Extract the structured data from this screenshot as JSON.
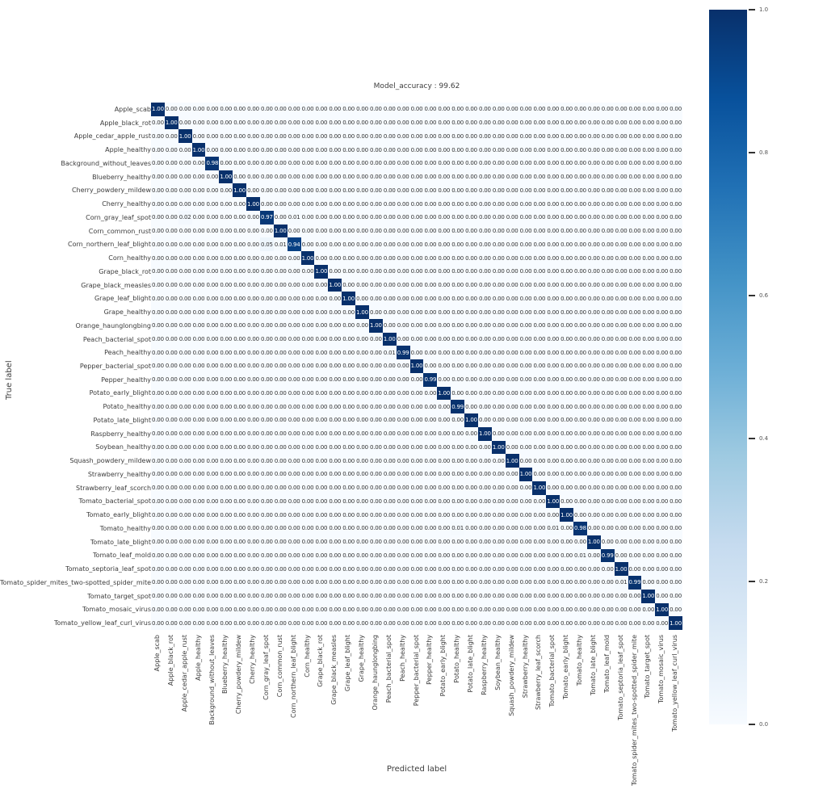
{
  "figure": {
    "title": "Model_accuracy : 99.62",
    "xlabel": "Predicted label",
    "ylabel": "True label"
  },
  "colorbar": {
    "ticks": [
      "1.0",
      "0.8",
      "0.6",
      "0.4",
      "0.2",
      "0.0"
    ],
    "tick_values": [
      1.0,
      0.8,
      0.6,
      0.4,
      0.2,
      0.0
    ],
    "top_color": "#08306b",
    "bottom_color": "#f7fbff"
  },
  "chart_data": {
    "type": "heatmap",
    "title": "Model_accuracy : 99.62",
    "xlabel": "Predicted label",
    "ylabel": "True label",
    "colormap": "Blues",
    "colormap_stops": [
      "#f7fbff",
      "#deebf7",
      "#c6dbef",
      "#9ecae1",
      "#6baed6",
      "#4292c6",
      "#2171b5",
      "#08519c",
      "#08306b"
    ],
    "vmin": 0.0,
    "vmax": 1.0,
    "value_format": "0.00",
    "default_value": 0.0,
    "labels": [
      "Apple_scab",
      "Apple_black_rot",
      "Apple_cedar_apple_rust",
      "Apple_healthy",
      "Background_without_leaves",
      "Blueberry_healthy",
      "Cherry_powdery_mildew",
      "Cherry_healthy",
      "Corn_gray_leaf_spot",
      "Corn_common_rust",
      "Corn_northern_leaf_blight",
      "Corn_healthy",
      "Grape_black_rot",
      "Grape_black_measles",
      "Grape_leaf_blight",
      "Grape_healthy",
      "Orange_haunglongbing",
      "Peach_bacterial_spot",
      "Peach_healthy",
      "Pepper_bacterial_spot",
      "Pepper_healthy",
      "Potato_early_blight",
      "Potato_healthy",
      "Potato_late_blight",
      "Raspberry_healthy",
      "Soybean_healthy",
      "Squash_powdery_mildew",
      "Strawberry_healthy",
      "Strawberry_leaf_scorch",
      "Tomato_bacterial_spot",
      "Tomato_early_blight",
      "Tomato_healthy",
      "Tomato_late_blight",
      "Tomato_leaf_mold",
      "Tomato_septoria_leaf_spot",
      "Tomato_spider_mites_two-spotted_spider_mite",
      "Tomato_target_spot",
      "Tomato_mosaic_virus",
      "Tomato_yellow_leaf_curl_virus"
    ],
    "diagonal": [
      1.0,
      1.0,
      1.0,
      1.0,
      0.98,
      1.0,
      1.0,
      1.0,
      0.97,
      1.0,
      0.94,
      1.0,
      1.0,
      1.0,
      1.0,
      1.0,
      1.0,
      1.0,
      0.99,
      1.0,
      0.99,
      1.0,
      0.99,
      1.0,
      1.0,
      1.0,
      1.0,
      1.0,
      1.0,
      1.0,
      1.0,
      0.98,
      1.0,
      0.99,
      1.0,
      0.99,
      1.0,
      1.0,
      1.0
    ],
    "off_diagonal_cells": [
      {
        "row": 8,
        "col": 2,
        "value": 0.02
      },
      {
        "row": 8,
        "col": 10,
        "value": 0.01
      },
      {
        "row": 10,
        "col": 8,
        "value": 0.05
      },
      {
        "row": 10,
        "col": 9,
        "value": 0.01
      },
      {
        "row": 18,
        "col": 17,
        "value": 0.01
      },
      {
        "row": 31,
        "col": 22,
        "value": 0.01
      },
      {
        "row": 31,
        "col": 29,
        "value": 0.01
      },
      {
        "row": 33,
        "col": 31,
        "value": 0.01
      },
      {
        "row": 35,
        "col": 34,
        "value": 0.01
      }
    ]
  }
}
